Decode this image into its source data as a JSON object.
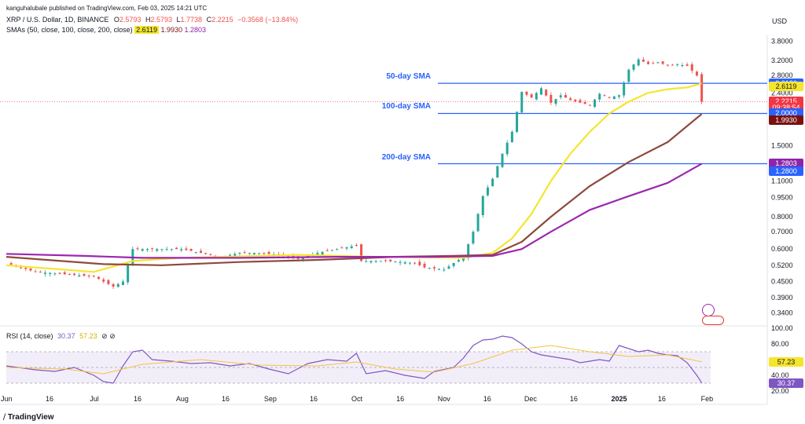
{
  "header": {
    "publisher": "kanguhalubale published on TradingView.com, Feb 03, 2025 14:21 UTC",
    "symbol": "XRP / U.S. Dollar, 1D, BINANCE",
    "ohlc": {
      "o_label": "O",
      "o": "2.5793",
      "h_label": "H",
      "h": "2.5793",
      "l_label": "L",
      "l": "1.7738",
      "c_label": "C",
      "c": "2.2215",
      "chg": "−0.3568 (−13.84%)"
    },
    "sma_legend": "SMAs (50, close, 100, close, 200, close)",
    "sma_values": [
      "2.6119",
      "1.9930",
      "1.2803"
    ],
    "currency": "USD"
  },
  "annotations": [
    {
      "text": "50-day SMA",
      "level": 2.612
    },
    {
      "text": "100-day SMA",
      "level": 2.0
    },
    {
      "text": "200-day SMA",
      "level": 1.28
    }
  ],
  "price_badges": [
    {
      "text": "2.6120",
      "color": "#2962ff",
      "price": 2.612
    },
    {
      "text": "2.6119",
      "color": "#f5e52e",
      "text_color": "#131722",
      "price": 2.55
    },
    {
      "text": "2.2215",
      "color": "#f23645",
      "price": 2.2215
    },
    {
      "text": "09:38:54",
      "color": "#f23645",
      "price": 2.1
    },
    {
      "text": "2.0000",
      "color": "#2962ff",
      "price": 2.0
    },
    {
      "text": "1.9930",
      "color": "#7a1111",
      "price": 1.88
    },
    {
      "text": "1.2803",
      "color": "#8e24aa",
      "price": 1.2803
    },
    {
      "text": "1.2800",
      "color": "#2962ff",
      "price": 1.2
    }
  ],
  "rsi": {
    "legend": "RSI (14, close)",
    "values": [
      "30.37",
      "57.23"
    ],
    "ticks": [
      "100.00",
      "80.00",
      "40.00",
      "20.00"
    ],
    "badges": [
      {
        "text": "57.23",
        "color": "#f5e52e",
        "text_color": "#131722",
        "value": 57.23
      },
      {
        "text": "30.37",
        "color": "#7e57c2",
        "value": 30.37
      }
    ]
  },
  "footer": {
    "logo": "TradingView"
  },
  "colors": {
    "sma50": "#f5e52e",
    "sma100": "#8d4a3c",
    "sma200": "#9c27b0",
    "up": "#26a69a",
    "down": "#ef5350",
    "hline": "#2962ff",
    "rsi": "#7e57c2",
    "rsi_ma": "#f5c242"
  },
  "chart_data": {
    "type": "line",
    "title": "XRP / U.S. Dollar, 1D, BINANCE",
    "scale": "log",
    "ylim": [
      0.31,
      4.0
    ],
    "y_ticks": [
      "3.8000",
      "3.2000",
      "2.8000",
      "2.4000",
      "2.0000",
      "1.5000",
      "1.1000",
      "0.9500",
      "0.8000",
      "0.7000",
      "0.6000",
      "0.5200",
      "0.4500",
      "0.3900",
      "0.3400"
    ],
    "x_ticks": [
      "Jun",
      "16",
      "Jul",
      "16",
      "Aug",
      "16",
      "Sep",
      "16",
      "Oct",
      "16",
      "Nov",
      "16",
      "Dec",
      "16",
      "2025",
      "16",
      "Feb"
    ],
    "x_tick_pos": [
      0.02,
      4.45,
      9.05,
      13.5,
      18.1,
      22.55,
      27.15,
      31.6,
      36.05,
      40.5,
      45.0,
      49.45,
      53.9,
      58.35,
      63.0,
      67.4,
      72.05
    ],
    "series": [
      {
        "name": "SMA 50",
        "values": [
          [
            0,
            0.52
          ],
          [
            9,
            0.49
          ],
          [
            13,
            0.54
          ],
          [
            18,
            0.555
          ],
          [
            30,
            0.57
          ],
          [
            38,
            0.56
          ],
          [
            47,
            0.555
          ],
          [
            50,
            0.58
          ],
          [
            52,
            0.66
          ],
          [
            54,
            0.82
          ],
          [
            56,
            1.1
          ],
          [
            58,
            1.4
          ],
          [
            60,
            1.7
          ],
          [
            62,
            2.0
          ],
          [
            64,
            2.22
          ],
          [
            66,
            2.4
          ],
          [
            68,
            2.48
          ],
          [
            70,
            2.52
          ],
          [
            71.5,
            2.61
          ]
        ]
      },
      {
        "name": "SMA 100",
        "values": [
          [
            0,
            0.56
          ],
          [
            10,
            0.525
          ],
          [
            16,
            0.52
          ],
          [
            24,
            0.535
          ],
          [
            32,
            0.545
          ],
          [
            40,
            0.56
          ],
          [
            46,
            0.565
          ],
          [
            50,
            0.57
          ],
          [
            53,
            0.64
          ],
          [
            56,
            0.8
          ],
          [
            60,
            1.05
          ],
          [
            64,
            1.3
          ],
          [
            68,
            1.55
          ],
          [
            71.5,
            1.99
          ]
        ]
      },
      {
        "name": "SMA 200",
        "values": [
          [
            0,
            0.575
          ],
          [
            8,
            0.565
          ],
          [
            14,
            0.555
          ],
          [
            24,
            0.555
          ],
          [
            34,
            0.56
          ],
          [
            44,
            0.56
          ],
          [
            50,
            0.565
          ],
          [
            53,
            0.6
          ],
          [
            56,
            0.7
          ],
          [
            60,
            0.85
          ],
          [
            64,
            0.96
          ],
          [
            68,
            1.08
          ],
          [
            71.5,
            1.28
          ]
        ]
      },
      {
        "name": "XRP close",
        "values": [
          [
            0,
            0.53
          ],
          [
            3,
            0.49
          ],
          [
            6,
            0.48
          ],
          [
            9,
            0.47
          ],
          [
            11,
            0.43
          ],
          [
            12,
            0.45
          ],
          [
            13,
            0.6
          ],
          [
            15,
            0.6
          ],
          [
            18,
            0.6
          ],
          [
            20,
            0.58
          ],
          [
            22,
            0.56
          ],
          [
            24,
            0.58
          ],
          [
            26,
            0.58
          ],
          [
            28,
            0.57
          ],
          [
            30,
            0.55
          ],
          [
            32,
            0.58
          ],
          [
            34,
            0.6
          ],
          [
            36,
            0.62
          ],
          [
            36.5,
            0.54
          ],
          [
            39,
            0.54
          ],
          [
            42,
            0.53
          ],
          [
            43,
            0.51
          ],
          [
            45,
            0.5
          ],
          [
            46,
            0.53
          ],
          [
            47,
            0.56
          ],
          [
            48,
            0.7
          ],
          [
            49,
            0.96
          ],
          [
            50,
            1.12
          ],
          [
            51,
            1.4
          ],
          [
            52,
            1.7
          ],
          [
            53,
            2.42
          ],
          [
            54,
            2.3
          ],
          [
            55,
            2.5
          ],
          [
            56,
            2.2
          ],
          [
            57,
            2.35
          ],
          [
            58,
            2.25
          ],
          [
            59,
            2.2
          ],
          [
            60,
            2.15
          ],
          [
            61,
            2.38
          ],
          [
            62,
            2.3
          ],
          [
            63,
            2.35
          ],
          [
            64,
            2.95
          ],
          [
            65,
            3.23
          ],
          [
            66,
            3.1
          ],
          [
            67,
            3.15
          ],
          [
            68,
            3.06
          ],
          [
            69,
            3.09
          ],
          [
            70,
            3.05
          ],
          [
            71,
            2.8
          ],
          [
            71.5,
            2.22
          ]
        ]
      }
    ],
    "rsi": {
      "ylim": [
        20,
        100
      ],
      "band": [
        30,
        70
      ],
      "values": [
        [
          0,
          52
        ],
        [
          3,
          47
        ],
        [
          5,
          45
        ],
        [
          7,
          50
        ],
        [
          9,
          40
        ],
        [
          10,
          32
        ],
        [
          11,
          30
        ],
        [
          12,
          52
        ],
        [
          13,
          70
        ],
        [
          14,
          72
        ],
        [
          15,
          60
        ],
        [
          17,
          58
        ],
        [
          19,
          55
        ],
        [
          21,
          56
        ],
        [
          23,
          52
        ],
        [
          25,
          55
        ],
        [
          27,
          48
        ],
        [
          29,
          42
        ],
        [
          31,
          55
        ],
        [
          33,
          60
        ],
        [
          35,
          58
        ],
        [
          36,
          68
        ],
        [
          36.5,
          55
        ],
        [
          37,
          42
        ],
        [
          39,
          46
        ],
        [
          41,
          40
        ],
        [
          42,
          38
        ],
        [
          43,
          36
        ],
        [
          44,
          45
        ],
        [
          46,
          50
        ],
        [
          47,
          62
        ],
        [
          48,
          78
        ],
        [
          49,
          85
        ],
        [
          50,
          86
        ],
        [
          51,
          90
        ],
        [
          52,
          88
        ],
        [
          53,
          80
        ],
        [
          54,
          70
        ],
        [
          55,
          66
        ],
        [
          56,
          64
        ],
        [
          57,
          62
        ],
        [
          58,
          60
        ],
        [
          59,
          56
        ],
        [
          60,
          58
        ],
        [
          61,
          60
        ],
        [
          62,
          58
        ],
        [
          63,
          78
        ],
        [
          64,
          74
        ],
        [
          65,
          70
        ],
        [
          66,
          72
        ],
        [
          67,
          68
        ],
        [
          68,
          66
        ],
        [
          69,
          65
        ],
        [
          70,
          56
        ],
        [
          71,
          40
        ],
        [
          71.5,
          30.37
        ]
      ]
    },
    "rsi_ma": {
      "values": [
        [
          0,
          50
        ],
        [
          6,
          48
        ],
        [
          10,
          42
        ],
        [
          14,
          54
        ],
        [
          20,
          60
        ],
        [
          26,
          53
        ],
        [
          32,
          52
        ],
        [
          36,
          57
        ],
        [
          40,
          48
        ],
        [
          44,
          44
        ],
        [
          48,
          55
        ],
        [
          52,
          72
        ],
        [
          56,
          78
        ],
        [
          60,
          70
        ],
        [
          64,
          64
        ],
        [
          68,
          66
        ],
        [
          71.5,
          57.23
        ]
      ]
    }
  }
}
